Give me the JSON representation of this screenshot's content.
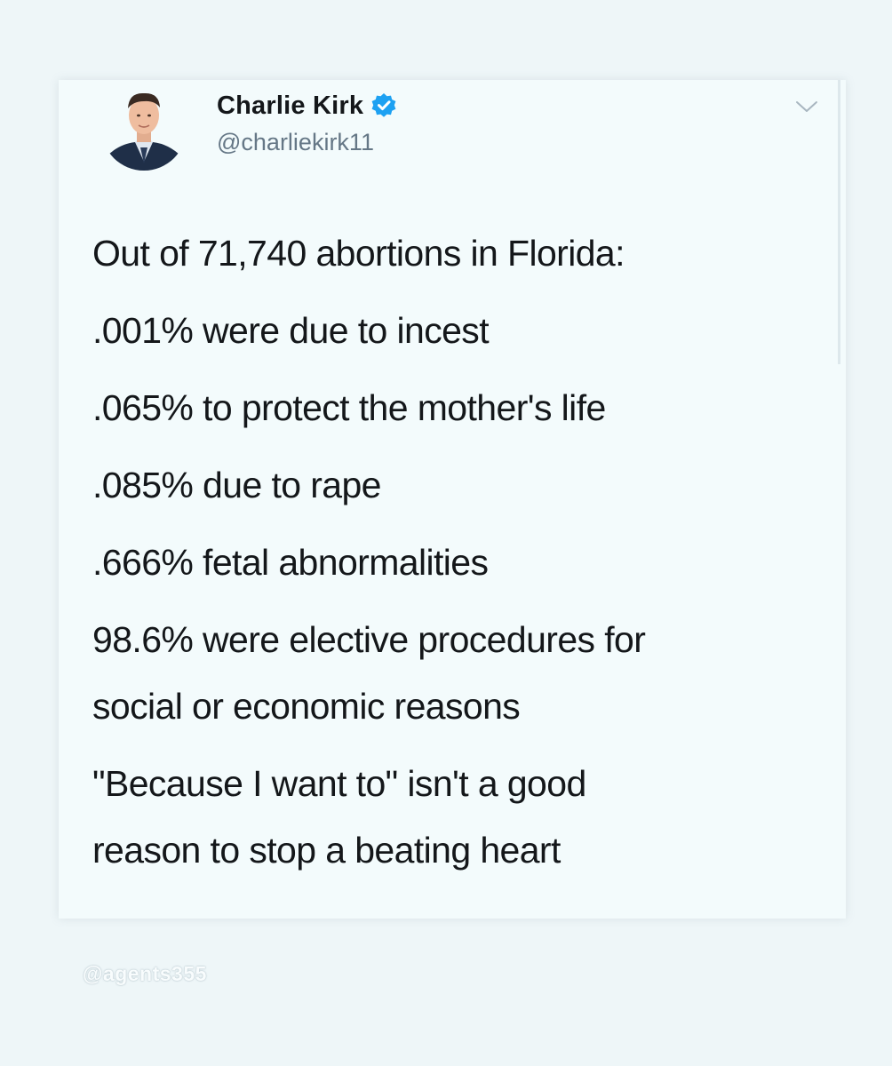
{
  "tweet": {
    "author_name": "Charlie Kirk",
    "author_handle": "@charliekirk11",
    "verified_icon": "verified-badge-icon",
    "menu_icon": "chevron-down-icon",
    "badge_color": "#1da1f2",
    "lines": [
      "Out of 71,740 abortions in Florida:",
      ".001% were due to incest",
      ".065% to protect the mother's life",
      ".085% due to rape",
      ".666% fetal abnormalities",
      "98.6% were elective procedures for",
      "social or economic reasons",
      "\"Because I want to\" isn't a good",
      "reason to stop a beating heart"
    ]
  },
  "watermark": "@agents355"
}
